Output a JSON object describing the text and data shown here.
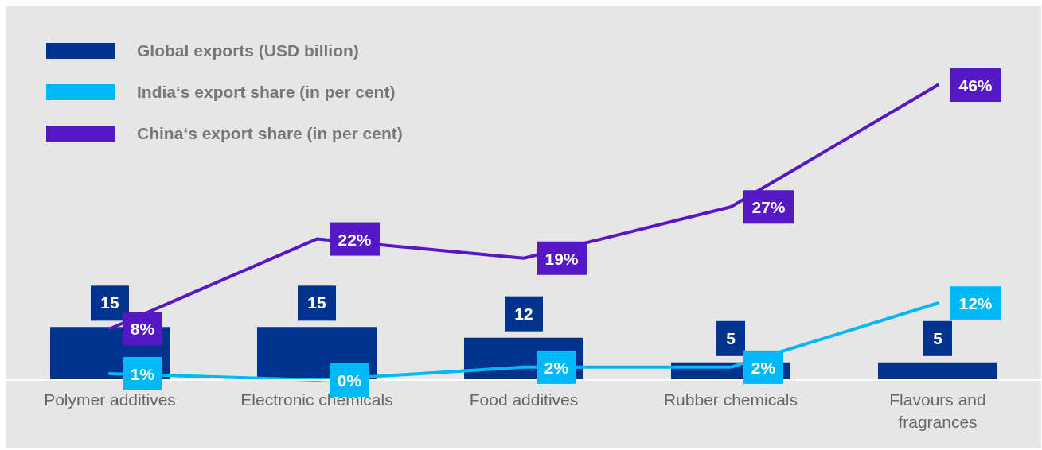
{
  "chart_data": {
    "type": "bar",
    "categories": [
      "Polymer additives",
      "Electronic chemicals",
      "Food additives",
      "Rubber chemicals",
      "Flavours and fragrances"
    ],
    "series": [
      {
        "name": "Global exports (USD billion)",
        "color": "#00338d",
        "values": [
          15,
          15,
          12,
          5,
          5
        ],
        "value_labels": [
          "15",
          "15",
          "12",
          "5",
          "5"
        ]
      },
      {
        "name": "India‘s export share (in per cent)",
        "type": "line",
        "axis": "y2",
        "color": "#00b8f5",
        "values": [
          1,
          0,
          2,
          2,
          12
        ],
        "value_labels": [
          "1%",
          "0%",
          "2%",
          "2%",
          "12%"
        ]
      },
      {
        "name": "China‘s export share (in per cent)",
        "type": "line",
        "axis": "y2",
        "color": "#5618c4",
        "values": [
          8,
          22,
          19,
          27,
          46
        ],
        "value_labels": [
          "8%",
          "22%",
          "19%",
          "27%",
          "46%"
        ]
      }
    ],
    "legend": "top left",
    "line_style": "solid"
  }
}
